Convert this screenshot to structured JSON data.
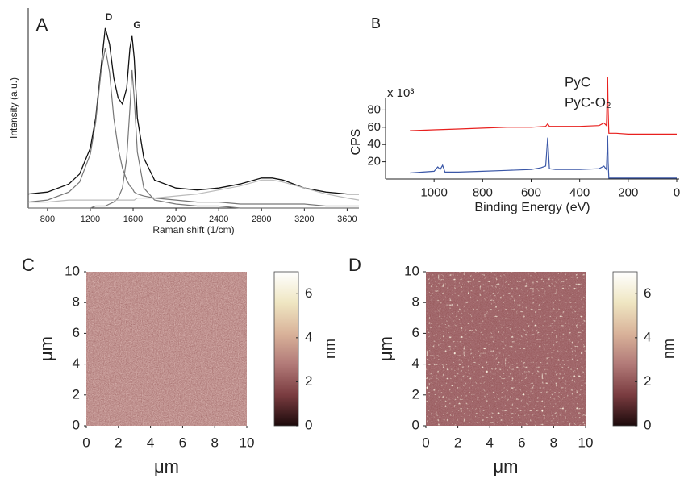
{
  "chart_data": [
    {
      "type": "line",
      "panel": "A",
      "xlabel": "Raman shift (1/cm)",
      "ylabel": "Intensity (a.u.)",
      "annotations": [
        "D",
        "G"
      ],
      "x": [
        620,
        800,
        1000,
        1100,
        1200,
        1250,
        1300,
        1340,
        1380,
        1420,
        1460,
        1500,
        1540,
        1570,
        1590,
        1610,
        1640,
        1700,
        1800,
        2000,
        2200,
        2400,
        2600,
        2800,
        2900,
        3000,
        3200,
        3400,
        3600,
        3710
      ],
      "series": [
        {
          "color": "#111111",
          "values": [
            7,
            8,
            12,
            17,
            30,
            45,
            70,
            90,
            82,
            65,
            55,
            52,
            60,
            80,
            86,
            75,
            45,
            25,
            14,
            10,
            9,
            10,
            12,
            15,
            15,
            14,
            10,
            8,
            7,
            7
          ]
        },
        {
          "color": "#777777",
          "values": [
            3,
            4,
            8,
            13,
            27,
            43,
            68,
            80,
            68,
            45,
            30,
            20,
            14,
            11,
            10,
            8,
            7,
            6,
            5,
            4,
            3,
            3,
            2,
            2,
            2,
            2,
            2,
            1,
            1,
            1
          ]
        },
        {
          "color": "#777777",
          "values": [
            0,
            0,
            0,
            0,
            0,
            1,
            1,
            1,
            2,
            3,
            5,
            10,
            25,
            50,
            69,
            55,
            28,
            10,
            4,
            2,
            1,
            1,
            0,
            0,
            0,
            0,
            0,
            0,
            0,
            0
          ]
        },
        {
          "color": "#bbbbbb",
          "values": [
            3,
            3,
            4,
            4,
            4,
            4,
            4,
            4,
            4,
            4,
            4,
            4,
            4,
            4,
            4,
            4,
            5,
            5,
            5,
            6,
            7,
            9,
            11,
            14,
            14,
            13,
            10,
            7,
            5,
            4
          ]
        }
      ],
      "xlim": [
        620,
        3710
      ],
      "ylim": [
        0,
        100
      ],
      "xticks": [
        800,
        1200,
        1600,
        2000,
        2400,
        2800,
        3200,
        3600
      ]
    },
    {
      "type": "line",
      "panel": "B",
      "xlabel": "Binding Energy (eV)",
      "ylabel": "CPS",
      "annotations": [
        "x 10³"
      ],
      "series": [
        {
          "name": "PyC",
          "color": "#e8201e",
          "x": [
            1100,
            1000,
            900,
            800,
            700,
            600,
            540,
            532,
            525,
            400,
            320,
            300,
            290,
            285,
            283,
            280,
            250,
            200,
            100,
            0
          ],
          "values": [
            56,
            57,
            58,
            59,
            60,
            60,
            61,
            64,
            61,
            61,
            62,
            65,
            62,
            118,
            80,
            53,
            53,
            52,
            52,
            52
          ]
        },
        {
          "name": "PyC-O₂",
          "color": "#3a57a7",
          "x": [
            1100,
            1000,
            985,
            975,
            965,
            955,
            900,
            800,
            700,
            600,
            560,
            540,
            532,
            525,
            500,
            400,
            320,
            300,
            290,
            285,
            283,
            280,
            250,
            200,
            100,
            0
          ],
          "values": [
            7,
            9,
            14,
            11,
            16,
            8,
            8,
            9,
            10,
            11,
            13,
            15,
            48,
            12,
            11,
            11,
            12,
            15,
            11,
            50,
            20,
            1,
            1,
            1,
            1,
            1
          ]
        }
      ],
      "xlim": [
        1200,
        -10
      ],
      "ylim": [
        0,
        86
      ],
      "xticks": [
        1000,
        800,
        600,
        400,
        200,
        0
      ],
      "yticks": [
        20,
        40,
        60,
        80
      ]
    },
    {
      "type": "image",
      "panel": "C",
      "xlabel": "μm",
      "ylabel": "μm",
      "xlim": [
        0,
        10
      ],
      "ylim": [
        0,
        10
      ],
      "xticks": [
        0,
        2,
        4,
        6,
        8,
        10
      ],
      "yticks": [
        0,
        2,
        4,
        6,
        8,
        10
      ],
      "colorbar": {
        "label": "nm",
        "lim": [
          0,
          7
        ],
        "ticks": [
          0,
          2,
          4,
          6
        ],
        "colors": [
          "#1c0a0b",
          "#7a3c40",
          "#b27a78",
          "#d9b39a",
          "#efe6c2",
          "#ffffff"
        ]
      }
    },
    {
      "type": "image",
      "panel": "D",
      "xlabel": "μm",
      "ylabel": "μm",
      "xlim": [
        0,
        10
      ],
      "ylim": [
        0,
        10
      ],
      "xticks": [
        0,
        2,
        4,
        6,
        8,
        10
      ],
      "yticks": [
        0,
        2,
        4,
        6,
        8,
        10
      ],
      "colorbar": {
        "label": "nm",
        "lim": [
          0,
          7
        ],
        "ticks": [
          0,
          2,
          4,
          6
        ],
        "colors": [
          "#1c0a0b",
          "#7a3c40",
          "#b27a78",
          "#d9b39a",
          "#efe6c2",
          "#ffffff"
        ]
      }
    }
  ]
}
